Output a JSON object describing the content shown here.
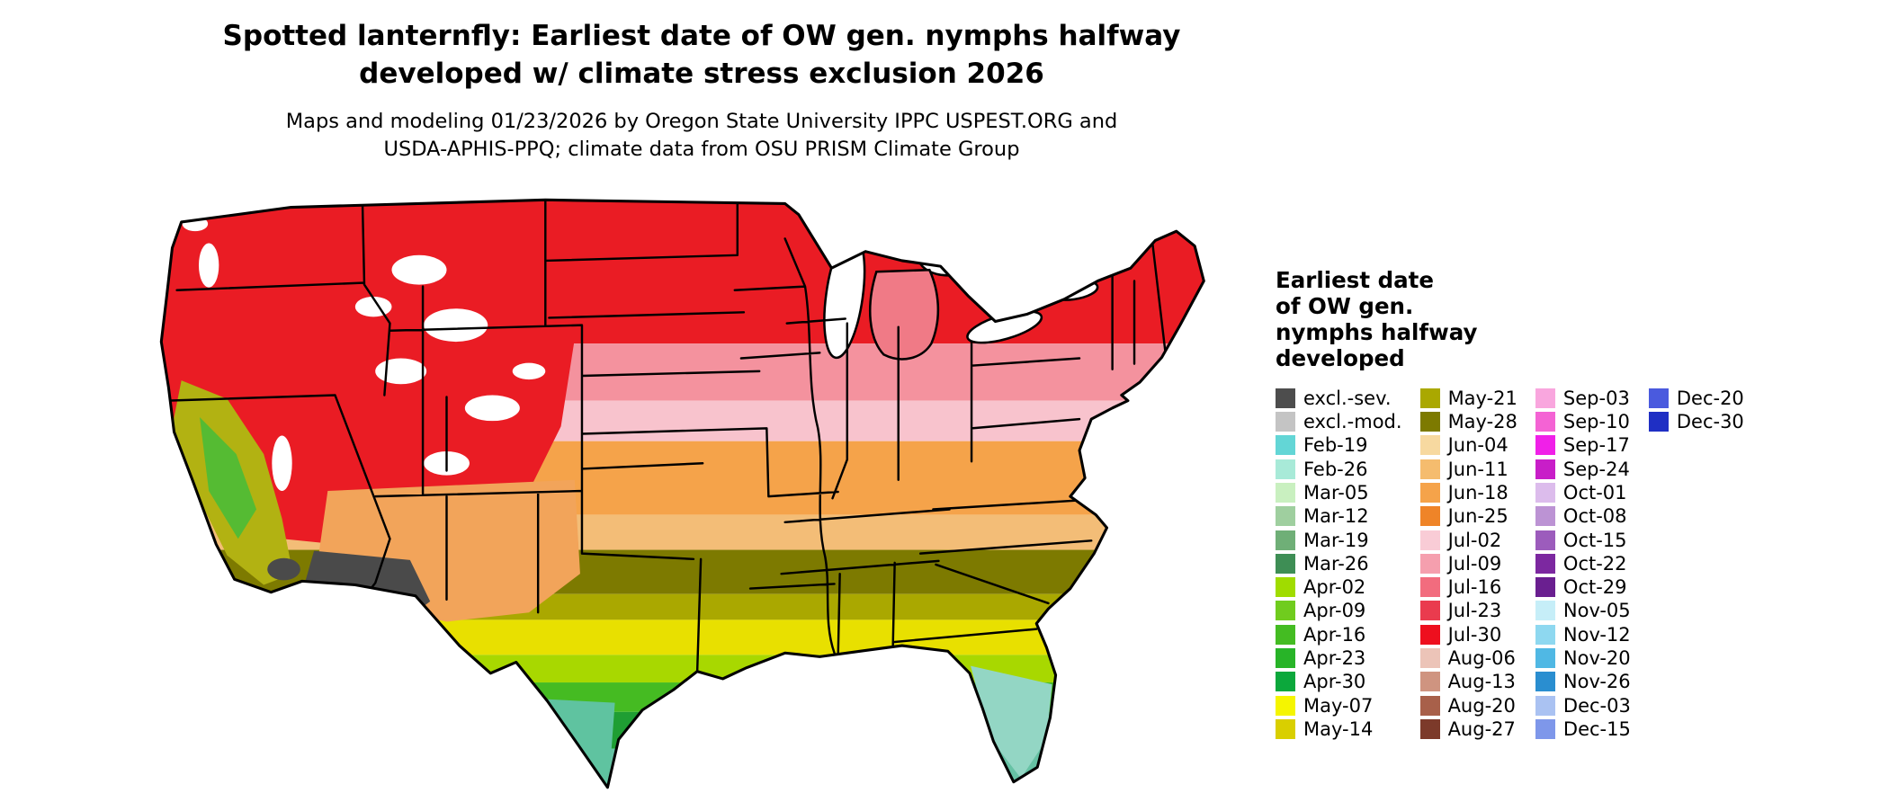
{
  "title": "Spotted lanternfly: Earliest date of OW gen. nymphs halfway\ndeveloped w/ climate stress exclusion 2026",
  "subtitle": "Maps and modeling 01/23/2026 by Oregon State University IPPC USPEST.ORG and\nUSDA-APHIS-PPQ; climate data from OSU PRISM Climate Group",
  "legend": {
    "title": "Earliest date\nof OW gen.\nnymphs halfway\ndeveloped",
    "columns": [
      {
        "items": [
          {
            "label": "excl.-sev.",
            "color": "#4d4d4d"
          },
          {
            "label": "excl.-mod.",
            "color": "#c4c4c4"
          },
          {
            "label": "Feb-19",
            "color": "#63d6d6"
          },
          {
            "label": "Feb-26",
            "color": "#a8ead8"
          },
          {
            "label": "Mar-05",
            "color": "#c9f0c0"
          },
          {
            "label": "Mar-12",
            "color": "#9fcf9f"
          },
          {
            "label": "Mar-19",
            "color": "#6faf77"
          },
          {
            "label": "Mar-26",
            "color": "#3e8e55"
          },
          {
            "label": "Apr-02",
            "color": "#a0dc00"
          },
          {
            "label": "Apr-09",
            "color": "#70cc1e"
          },
          {
            "label": "Apr-16",
            "color": "#44bc22"
          },
          {
            "label": "Apr-23",
            "color": "#28b428"
          },
          {
            "label": "Apr-30",
            "color": "#0ca83c"
          },
          {
            "label": "May-07",
            "color": "#f5f500"
          },
          {
            "label": "May-14",
            "color": "#d9cf00"
          }
        ]
      },
      {
        "items": [
          {
            "label": "May-21",
            "color": "#aaa800"
          },
          {
            "label": "May-28",
            "color": "#7d7a00"
          },
          {
            "label": "Jun-04",
            "color": "#f7d9a0"
          },
          {
            "label": "Jun-11",
            "color": "#f5bc6e"
          },
          {
            "label": "Jun-18",
            "color": "#f5a34a"
          },
          {
            "label": "Jun-25",
            "color": "#ef8428"
          },
          {
            "label": "Jul-02",
            "color": "#f9ccd6"
          },
          {
            "label": "Jul-09",
            "color": "#f59fae"
          },
          {
            "label": "Jul-16",
            "color": "#f26c7e"
          },
          {
            "label": "Jul-23",
            "color": "#ea3b4e"
          },
          {
            "label": "Jul-30",
            "color": "#ee0f1e"
          },
          {
            "label": "Aug-06",
            "color": "#ecc4b8"
          },
          {
            "label": "Aug-13",
            "color": "#cf9480"
          },
          {
            "label": "Aug-20",
            "color": "#a8604a"
          },
          {
            "label": "Aug-27",
            "color": "#7c3a2a"
          }
        ]
      },
      {
        "items": [
          {
            "label": "Sep-03",
            "color": "#f9a6de"
          },
          {
            "label": "Sep-10",
            "color": "#f463d4"
          },
          {
            "label": "Sep-17",
            "color": "#f020e8"
          },
          {
            "label": "Sep-24",
            "color": "#c81ec8"
          },
          {
            "label": "Oct-01",
            "color": "#dcbcec"
          },
          {
            "label": "Oct-08",
            "color": "#bc93d4"
          },
          {
            "label": "Oct-15",
            "color": "#9c5cbc"
          },
          {
            "label": "Oct-22",
            "color": "#7c28a0"
          },
          {
            "label": "Oct-29",
            "color": "#6a1f90"
          },
          {
            "label": "Nov-05",
            "color": "#c6eef8"
          },
          {
            "label": "Nov-12",
            "color": "#8ed8f0"
          },
          {
            "label": "Nov-20",
            "color": "#50b8e4"
          },
          {
            "label": "Nov-26",
            "color": "#2a8ed0"
          },
          {
            "label": "Dec-03",
            "color": "#aac2f2"
          },
          {
            "label": "Dec-15",
            "color": "#7e97ea"
          }
        ]
      },
      {
        "items": [
          {
            "label": "Dec-20",
            "color": "#4a5ade"
          },
          {
            "label": "Dec-30",
            "color": "#1f2fc4"
          }
        ]
      }
    ]
  },
  "map": {
    "outline": "#000000",
    "bands": [
      "#ea1c24",
      "#f4929e",
      "#f8c3cd",
      "#f5a34a",
      "#f3bd77",
      "#7d7a00",
      "#aaa800",
      "#e8e000",
      "#a8d800",
      "#45bb22",
      "#1f9e33",
      "#66c2a4"
    ],
    "patches": {
      "west_red": "#ea1c24",
      "mottle_white": "#ffffff",
      "southwest_orange": "#f2a45a",
      "ca_olive": "#b2b212",
      "ca_green": "#55bb33",
      "az_gray": "#4a4a4a",
      "tx_teal": "#5fc3a0",
      "fl_teal": "#93d6c4",
      "michigan_pink": "#f07a86",
      "lake_white": "#ffffff"
    }
  }
}
